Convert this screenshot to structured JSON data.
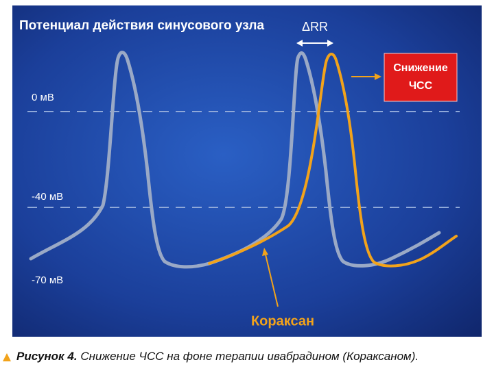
{
  "title": "Потенциал действия синусового узла",
  "axis_labels": [
    "0 мВ",
    "-40 мВ",
    "-70 мВ"
  ],
  "delta_label": "ΔRR",
  "callout": [
    "Снижение",
    "ЧСС"
  ],
  "drug_label": "Кораксан",
  "caption": {
    "label": "Рисунок 4.",
    "text": "Снижение ЧСС на фоне терапии ивабрадином (Кораксаном)."
  }
}
